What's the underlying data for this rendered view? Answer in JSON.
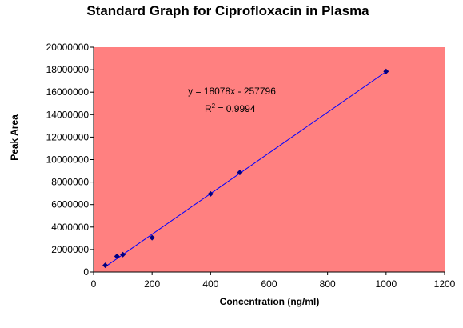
{
  "chart_data": {
    "type": "scatter",
    "title": "Standard Graph for Ciprofloxacin in Plasma",
    "xlabel": "Concentration (ng/ml)",
    "ylabel": "Peak Area",
    "xlim": [
      0,
      1200
    ],
    "ylim": [
      0,
      20000000
    ],
    "x_ticks": [
      "0",
      "200",
      "400",
      "600",
      "800",
      "1000",
      "1200"
    ],
    "y_ticks": [
      "0",
      "2000000",
      "4000000",
      "6000000",
      "8000000",
      "10000000",
      "12000000",
      "14000000",
      "16000000",
      "18000000",
      "20000000"
    ],
    "x_tick_values": [
      0,
      200,
      400,
      600,
      800,
      1000,
      1200
    ],
    "y_tick_values": [
      0,
      2000000,
      4000000,
      6000000,
      8000000,
      10000000,
      12000000,
      14000000,
      16000000,
      18000000,
      20000000
    ],
    "series": [
      {
        "x": [
          40,
          80,
          100,
          200,
          400,
          500,
          1000
        ],
        "y": [
          600000,
          1400000,
          1550000,
          3050000,
          6950000,
          8850000,
          17850000
        ]
      }
    ],
    "trendline": {
      "type": "linear",
      "slope": 18078,
      "intercept": -257796,
      "x_range": [
        40,
        1000
      ]
    },
    "equation_text": "y = 18078x - 257796",
    "r2_prefix": "R",
    "r2_superscript": "2",
    "r2_value_text": " = 0.9994",
    "grid": false,
    "legend": "none",
    "colors": {
      "plot_background": "#ff8080",
      "marker": "#000080",
      "trendline": "#0000ff",
      "axis": "#000000",
      "page_background": "#ffffff"
    }
  }
}
